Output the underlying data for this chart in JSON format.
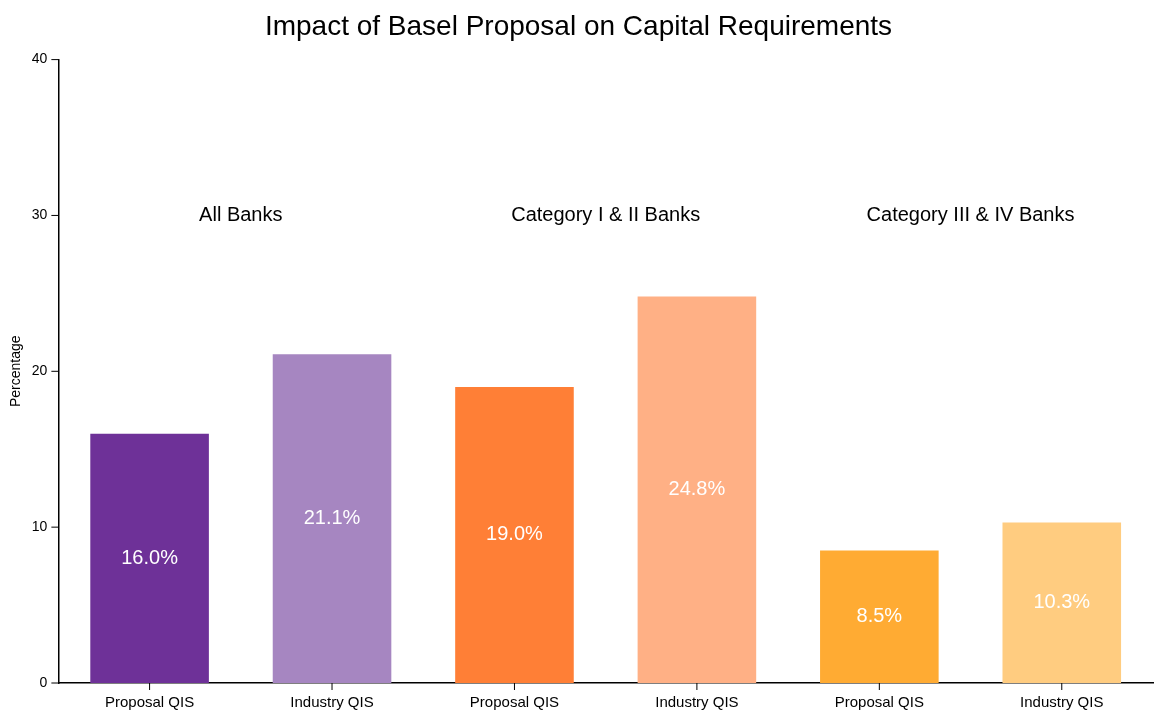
{
  "chart_data": {
    "type": "bar",
    "title": "Impact of Basel Proposal on Capital Requirements",
    "ylabel": "Percentage",
    "categories": [
      "Proposal QIS",
      "Industry QIS",
      "Proposal QIS",
      "Industry QIS",
      "Proposal QIS",
      "Industry QIS"
    ],
    "values": [
      16.0,
      21.1,
      19.0,
      24.8,
      8.5,
      10.3
    ],
    "colors": [
      "#6e3198",
      "#a686c1",
      "#ff7f36",
      "#ffb085",
      "#ffab33",
      "#ffcc80"
    ],
    "value_labels": [
      "16.0%",
      "21.1%",
      "19.0%",
      "24.8%",
      "8.5%",
      "10.3%"
    ],
    "annotations": [
      "All Banks",
      "Category I & II Banks",
      "Category III & IV Banks"
    ],
    "ylim": [
      0,
      40
    ],
    "yticks": [
      0,
      10,
      20,
      30,
      40
    ],
    "grid": false,
    "legend": false
  }
}
